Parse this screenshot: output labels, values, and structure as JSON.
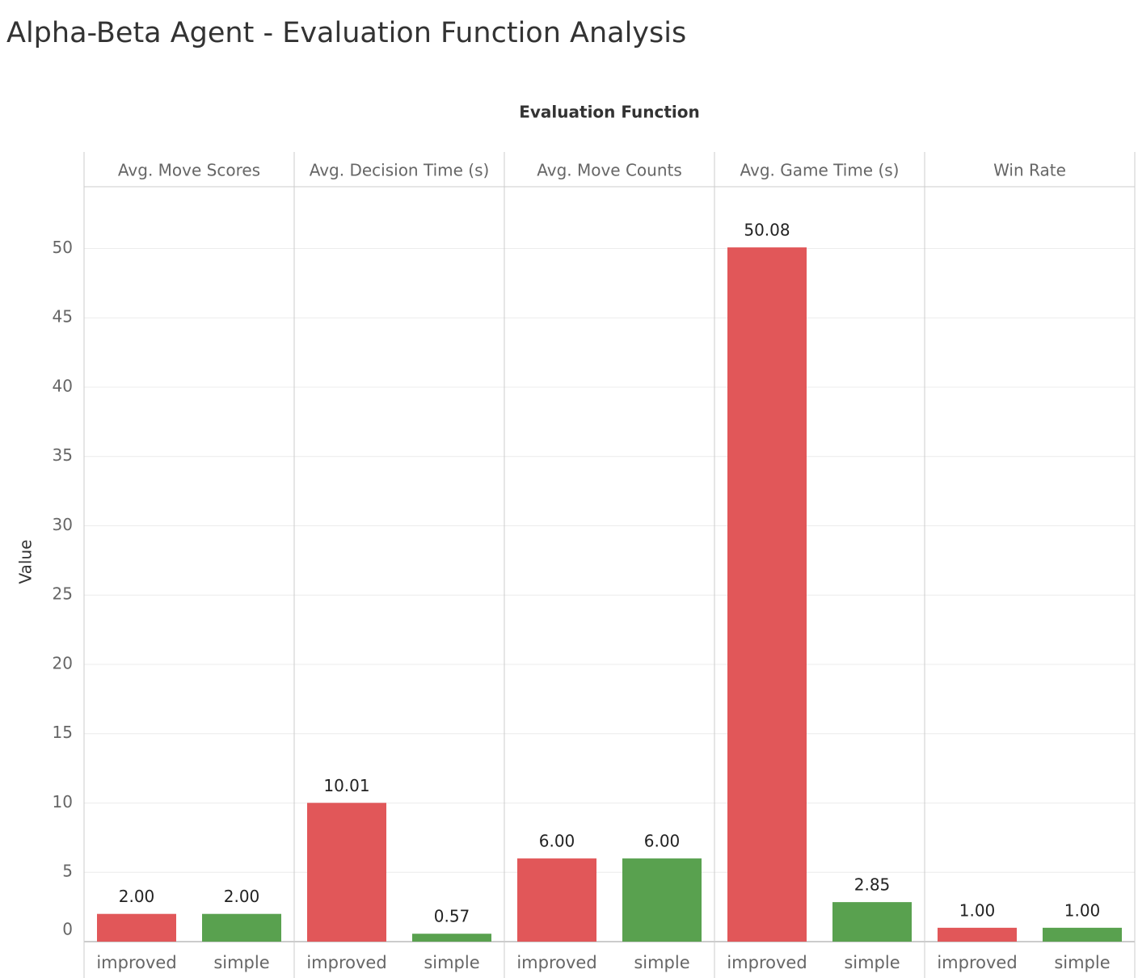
{
  "chart_data": {
    "type": "bar",
    "title": "Alpha-Beta Agent - Evaluation Function Analysis",
    "column_header": "Evaluation Function",
    "y_label": "Value",
    "ylim": [
      0,
      54.4
    ],
    "yticks": [
      0,
      5,
      10,
      15,
      20,
      25,
      30,
      35,
      40,
      45,
      50
    ],
    "grid": true,
    "colors": [
      "#e15759",
      "#59a14f"
    ],
    "panels": [
      {
        "title": "Avg. Move Scores",
        "categories": [
          "improved",
          "simple"
        ],
        "values": [
          2,
          2
        ],
        "value_labels": [
          "2.00",
          "2.00"
        ]
      },
      {
        "title": "Avg. Decision Time (s)",
        "categories": [
          "improved",
          "simple"
        ],
        "values": [
          10.01,
          0.57
        ],
        "value_labels": [
          "10.01",
          "0.57"
        ]
      },
      {
        "title": "Avg. Move Counts",
        "categories": [
          "improved",
          "simple"
        ],
        "values": [
          6,
          6
        ],
        "value_labels": [
          "6.00",
          "6.00"
        ]
      },
      {
        "title": "Avg. Game Time (s)",
        "categories": [
          "improved",
          "simple"
        ],
        "values": [
          50.08,
          2.85
        ],
        "value_labels": [
          "50.08",
          "2.85"
        ]
      },
      {
        "title": "Win Rate",
        "categories": [
          "improved",
          "simple"
        ],
        "values": [
          1,
          1
        ],
        "value_labels": [
          "1.00",
          "1.00"
        ]
      }
    ]
  }
}
